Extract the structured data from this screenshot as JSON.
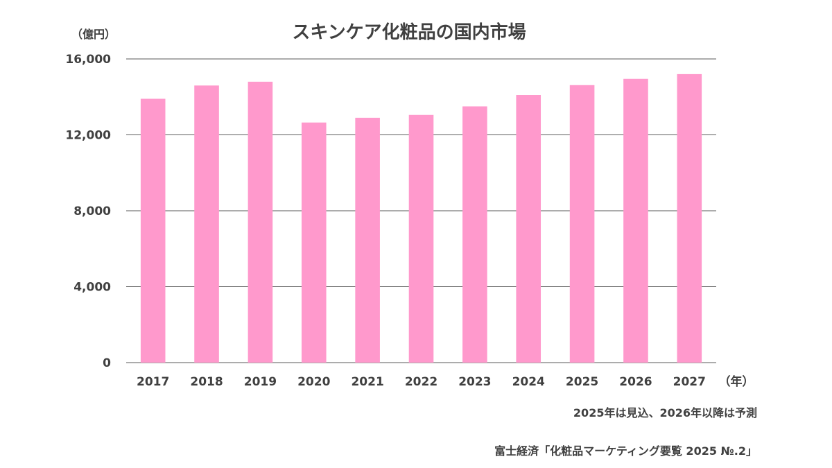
{
  "chart_data": {
    "type": "bar",
    "title": "スキンケア化粧品の国内市場",
    "ylabel": "（億円）",
    "xlabel": "（年）",
    "categories": [
      "2017",
      "2018",
      "2019",
      "2020",
      "2021",
      "2022",
      "2023",
      "2024",
      "2025",
      "2026",
      "2027"
    ],
    "series": [
      {
        "values": [
          13900,
          14600,
          14800,
          12650,
          12900,
          13050,
          13500,
          14100,
          14620,
          14950,
          15200
        ]
      }
    ],
    "ylim": [
      0,
      16000
    ],
    "yticks": [
      0,
      4000,
      8000,
      12000,
      16000
    ],
    "ytick_labels": [
      "0",
      "4,000",
      "8,000",
      "12,000",
      "16,000"
    ],
    "grid": true,
    "bar_color": "#ff99cc"
  },
  "notes": {
    "forecast": "2025年は見込、2026年以降は予測",
    "source": "富士経済「化粧品マーケティング要覧 2025 №.2」"
  }
}
